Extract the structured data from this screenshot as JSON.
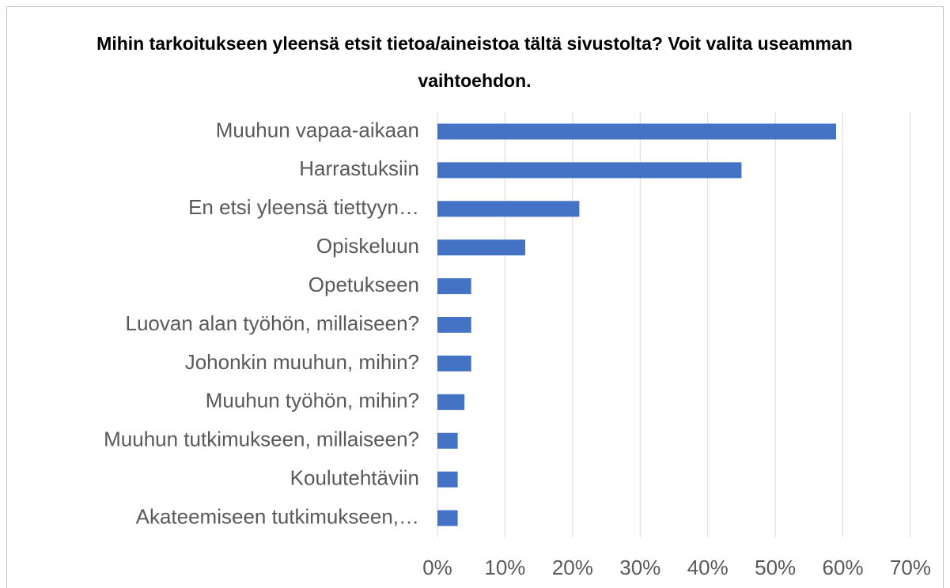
{
  "chart_data": {
    "type": "bar",
    "orientation": "horizontal",
    "title": "Mihin tarkoitukseen yleensä etsit tietoa/aineistoa tältä sivustolta? Voit valita useamman vaihtoehdon.",
    "categories": [
      "Muuhun vapaa-aikaan",
      "Harrastuksiin",
      "En etsi yleensä tiettyyn…",
      "Opiskeluun",
      "Opetukseen",
      "Luovan alan työhön, millaiseen?",
      "Johonkin muuhun, mihin?",
      "Muuhun työhön, mihin?",
      "Muuhun tutkimukseen, millaiseen?",
      "Koulutehtäviin",
      "Akateemiseen tutkimukseen,…"
    ],
    "values": [
      59,
      45,
      21,
      13,
      5,
      5,
      5,
      4,
      3,
      3,
      3
    ],
    "color": "#4472c4",
    "xlim": [
      0,
      70
    ],
    "xticks": [
      {
        "value": 0,
        "label": "0%"
      },
      {
        "value": 10,
        "label": "10%"
      },
      {
        "value": 20,
        "label": "20%"
      },
      {
        "value": 30,
        "label": "30%"
      },
      {
        "value": 40,
        "label": "40%"
      },
      {
        "value": 50,
        "label": "50%"
      },
      {
        "value": 60,
        "label": "60%"
      },
      {
        "value": 70,
        "label": "70%"
      }
    ],
    "grid": true
  }
}
